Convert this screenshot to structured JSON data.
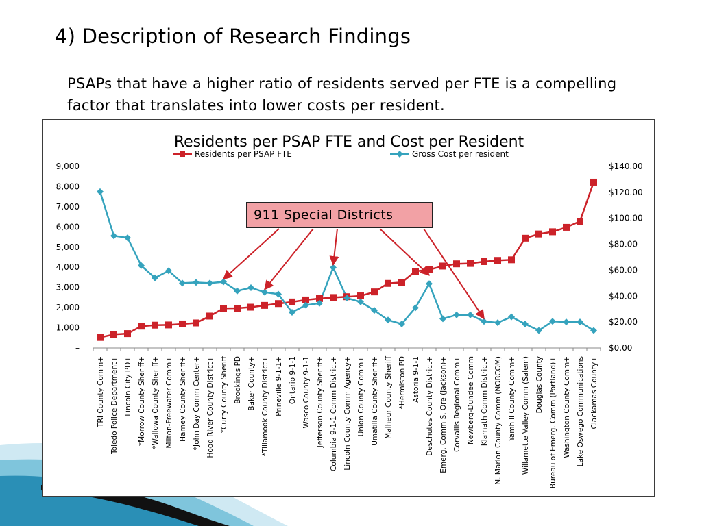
{
  "slide": {
    "title": "4) Description of Research Findings",
    "body": "PSAPs that have a higher ratio of residents served per FTE is a compelling factor that translates into lower costs per resident.",
    "callout": "911 Special Districts"
  },
  "colors": {
    "residents_series": "#cc2229",
    "cost_series": "#35a3bd",
    "callout_fill": "#f2a1a5",
    "arrow": "#cc2229"
  },
  "chart_data": {
    "type": "line",
    "title": "Residents per PSAP FTE and Cost per Resident",
    "legend_position": "top",
    "categories": [
      "TRI County Comm+",
      "Toledo Police Department+",
      "Lincoln City PD+",
      "*Morrow County Sheriff+",
      "*Wallowa County Sheriff+",
      "Milton-Freewater Comm+",
      "Harney County Sheriff+",
      "*John Day Comm Center+",
      "Hood River County District+",
      "*Curry County Sheriff",
      "Brookings PD",
      "Baker County+",
      "*Tillamook County District+",
      "Prineville 9-1-1+",
      "Ontario 9-1-1",
      "Wasco County 9-1-1",
      "Jefferson County Sheriff+",
      "Columbia 9-1-1 Comm District+",
      "Lincoln County Comm Agency+",
      "Union County Comm+",
      "Umatilla County Sheriff+",
      "Malheur County Sheriff",
      "*Hermiston PD",
      "Astoria 9-1-1",
      "Deschutes County District+",
      "Emerg. Comm S. Ore (Jackson)+",
      "Corvallis Regional Comm+",
      "Newberg-Dundee Comm",
      "Klamath Comm District+",
      "N. Marion County Comm (NORCOM)",
      "Yamhill County Comm+",
      "Willamette Valley Comm (Salem)",
      "Douglas County",
      "Bureau of Emerg. Comm (Portland)+",
      "Washington County Comm+",
      "Lake Oswego Communications",
      "Clackamas County+"
    ],
    "series": [
      {
        "name": "Residents per PSAP FTE",
        "axis": "left",
        "marker": "square",
        "values": [
          520,
          670,
          710,
          1080,
          1130,
          1140,
          1190,
          1240,
          1580,
          1960,
          1970,
          2020,
          2110,
          2200,
          2280,
          2380,
          2450,
          2500,
          2540,
          2580,
          2780,
          3200,
          3250,
          3800,
          3880,
          4060,
          4170,
          4190,
          4280,
          4340,
          4370,
          5440,
          5650,
          5760,
          5980,
          6280,
          8220
        ]
      },
      {
        "name": "Gross Cost per resident",
        "axis": "right",
        "marker": "diamond",
        "values": [
          120.5,
          86.5,
          85.0,
          63.5,
          54.0,
          59.5,
          50.0,
          50.5,
          50.0,
          51.0,
          44.0,
          46.5,
          43.0,
          41.5,
          27.5,
          33.0,
          34.5,
          62.0,
          38.5,
          35.5,
          29.0,
          21.5,
          18.5,
          31.0,
          49.5,
          22.5,
          25.5,
          25.5,
          20.5,
          19.5,
          24.0,
          18.5,
          13.5,
          20.5,
          20.0,
          20.0,
          13.5
        ]
      }
    ],
    "y_left": {
      "min": 0,
      "max": 9000,
      "ticks": [
        0,
        1000,
        2000,
        3000,
        4000,
        5000,
        6000,
        7000,
        8000,
        9000
      ],
      "tick_labels": [
        "–",
        "1,000",
        "2,000",
        "3,000",
        "4,000",
        "5,000",
        "6,000",
        "7,000",
        "8,000",
        "9,000"
      ]
    },
    "y_right": {
      "min": 0,
      "max": 140,
      "ticks": [
        0,
        20,
        40,
        60,
        80,
        100,
        120,
        140
      ],
      "tick_labels": [
        "$0.00",
        "$20.00",
        "$40.00",
        "$60.00",
        "$80.00",
        "$100.00",
        "$120.00",
        "$140.00"
      ]
    },
    "grid": false,
    "annotations": [
      {
        "text": "911 Special Districts",
        "points_to": [
          "*Curry County Sheriff",
          "*Tillamook County District+",
          "Columbia 9-1-1 Comm District+",
          "Deschutes County District+",
          "Klamath Comm District+"
        ]
      }
    ]
  }
}
